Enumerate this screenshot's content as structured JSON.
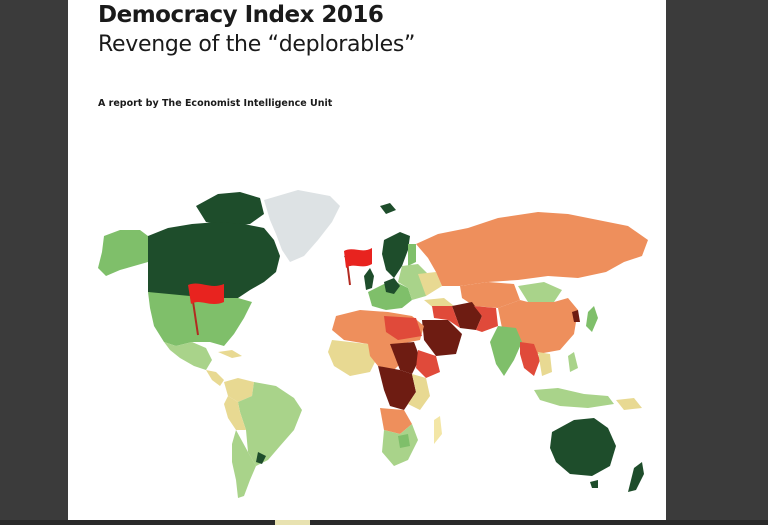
{
  "document": {
    "title": "Democracy Index 2016",
    "subtitle": "Revenge of the “deplorables”",
    "byline": "A report by The Economist Intelligence Unit"
  },
  "map": {
    "colors": {
      "full_democracy": "#1e4d2b",
      "flawed_democracy": "#7fbf6a",
      "light_green": "#a9d38a",
      "hybrid_regime": "#e8d992",
      "pale_yellow": "#f3e6a6",
      "authoritarian": "#ee8f5c",
      "red": "#e04a3a",
      "dark_red": "#6e1c12",
      "no_data": "#dde2e4",
      "flag": "#e8231f"
    }
  }
}
